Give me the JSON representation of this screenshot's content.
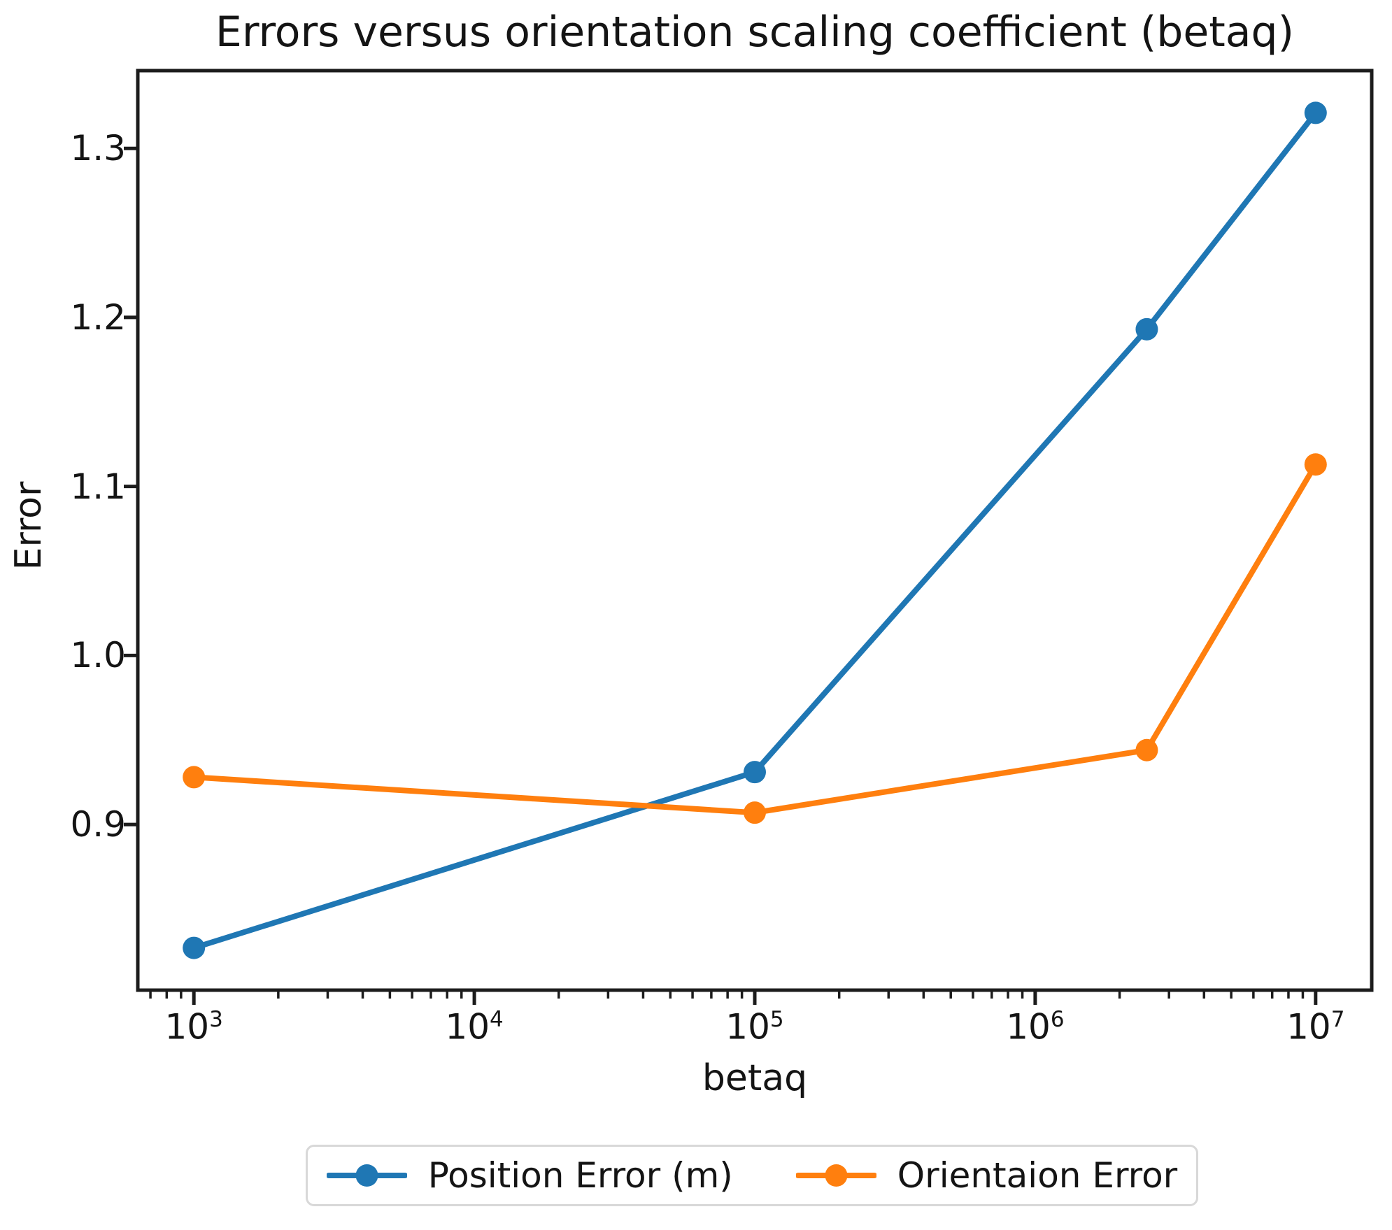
{
  "figure": {
    "title": "Errors versus orientation scaling coefficient (betaq)",
    "xlabel": "betaq",
    "ylabel": "Error"
  },
  "chart_data": {
    "type": "line",
    "title": "Errors versus orientation scaling coefficient (betaq)",
    "xlabel": "betaq",
    "ylabel": "Error",
    "xscale": "log",
    "yscale": "linear",
    "x": [
      1000,
      100000,
      2500000,
      10000000
    ],
    "series": [
      {
        "name": "Position Error (m)",
        "color": "#1f77b4",
        "marker": "circle",
        "values": [
          0.827,
          0.931,
          1.193,
          1.321
        ]
      },
      {
        "name": "Orientaion Error",
        "color": "#ff7f0e",
        "marker": "circle",
        "values": [
          0.928,
          0.907,
          0.944,
          1.113
        ]
      }
    ],
    "xticks": [
      1000,
      10000,
      100000,
      1000000,
      10000000
    ],
    "yticks": [
      0.9,
      1.0,
      1.1,
      1.2,
      1.3
    ],
    "xlim": [
      631,
      15849000
    ],
    "ylim": [
      0.802,
      1.346
    ],
    "grid": false,
    "legend_position": "below-center"
  },
  "colors": {
    "axis": "#1c1c1c",
    "text": "#141414",
    "legend_border": "#d8d8d8",
    "background": "#ffffff"
  }
}
